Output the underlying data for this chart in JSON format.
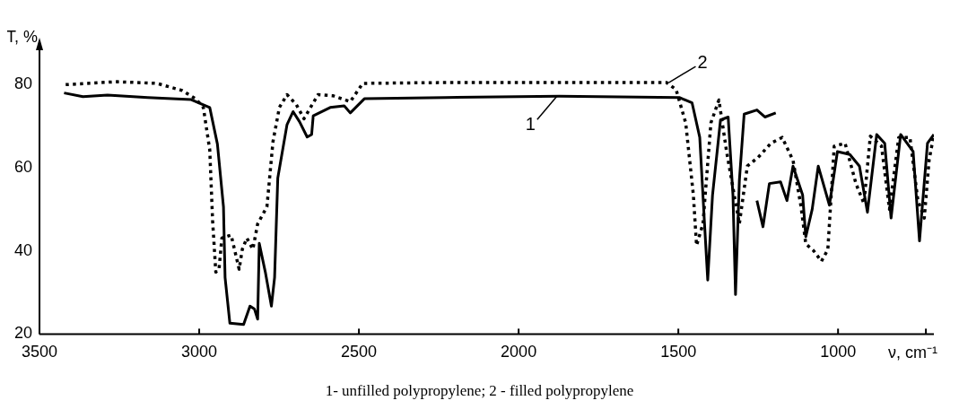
{
  "chart_data": {
    "type": "line",
    "xlabel": "ν, cm⁻¹",
    "ylabel": "T, %",
    "xlim": [
      3500,
      700
    ],
    "xticks": [
      3500,
      3000,
      2500,
      2000,
      1500,
      1000,
      {
        "value": 725,
        "label": null
      }
    ],
    "ylim": [
      20,
      90
    ],
    "yticks": [
      20,
      40,
      60,
      80
    ],
    "grid": false,
    "legend": false,
    "marker": "none",
    "series": [
      {
        "color": "#000000",
        "line_style": "solid",
        "x": [
          3423,
          3364,
          3287,
          3161,
          3025,
          2967,
          2943,
          2924,
          2919,
          2904,
          2861,
          2841,
          2827,
          2817,
          2812,
          2793,
          2774,
          2764,
          2754,
          2725,
          2706,
          2686,
          2662,
          2648,
          2643,
          2590,
          2546,
          2527,
          2483,
          2230,
          1873,
          1497,
          1457,
          1433,
          1418,
          1408,
          1393,
          1368,
          1344,
          1329,
          1321,
          1309,
          1294,
          1254,
          1229,
          1195,
          null,
          1254,
          1235,
          1215,
          1180,
          1160,
          1141,
          1111,
          1101,
          1081,
          1062,
          1027,
          1002,
          963,
          933,
          908,
          879,
          854,
          834,
          804,
          765,
          745,
          720,
          700
        ],
        "values": [
          78,
          77.1,
          77.5,
          76.9,
          76.4,
          74.5,
          65.7,
          50.6,
          33.6,
          22.6,
          22.3,
          26.7,
          26,
          23.6,
          41.8,
          34.9,
          26.7,
          33.6,
          57.5,
          70.4,
          73.5,
          71.1,
          67.4,
          68,
          72.5,
          74.5,
          74.9,
          73.2,
          76.6,
          76.9,
          77.2,
          76.9,
          75.6,
          67.3,
          46.5,
          33,
          53.4,
          71.5,
          72.2,
          53.4,
          29.5,
          56.9,
          72.9,
          73.9,
          72.2,
          73.2,
          null,
          52.1,
          45.8,
          56.2,
          56.6,
          52.1,
          60.4,
          53.5,
          43.4,
          50,
          60.4,
          51,
          63.9,
          63.2,
          60.4,
          49.3,
          68,
          65.9,
          47.9,
          68,
          63.9,
          42.4,
          65.9,
          68
        ]
      },
      {
        "color": "#000000",
        "line_style": "dotted",
        "x": [
          3418,
          3258,
          3132,
          3054,
          3011,
          2987,
          2967,
          2958,
          2948,
          2938,
          2929,
          2900,
          2875,
          2865,
          2851,
          2832,
          2817,
          2788,
          2769,
          2749,
          2725,
          2696,
          2672,
          2628,
          2580,
          2527,
          2488,
          2230,
          1537,
          1507,
          1477,
          1453,
          1443,
          1423,
          1398,
          1373,
          1349,
          1309,
          1284,
          1250,
          1210,
          1175,
          1141,
          1116,
          1101,
          1076,
          1052,
          1032,
          1012,
          978,
          944,
          919,
          899,
          864,
          839,
          810,
          775,
          750,
          730,
          715,
          700
        ],
        "values": [
          80,
          80.7,
          80.3,
          78.6,
          76.6,
          74.5,
          64.3,
          47.2,
          34.9,
          35.6,
          43.1,
          43.8,
          35.6,
          40.4,
          43.1,
          40.4,
          46.5,
          50.6,
          66.3,
          74.5,
          77.6,
          75.2,
          71.8,
          77.6,
          77.3,
          75.9,
          80.3,
          80.5,
          80.5,
          78.8,
          70.8,
          53.5,
          41.3,
          46.5,
          70.8,
          76.3,
          63.9,
          46.5,
          60.4,
          62.5,
          65.9,
          67.3,
          61.8,
          50.7,
          41.7,
          40,
          37.5,
          40.3,
          65.2,
          65.9,
          56.2,
          51.4,
          67.6,
          65.2,
          50,
          67.3,
          67.3,
          52.1,
          47.9,
          61.8,
          68
        ]
      }
    ],
    "annotations": [
      {
        "text": "1",
        "x": 1880,
        "y": 77.2
      },
      {
        "text": "2",
        "x": 1530,
        "y": 80.5
      },
      "1- unfilled polypropylene; 2 - filled polypropylene"
    ]
  }
}
